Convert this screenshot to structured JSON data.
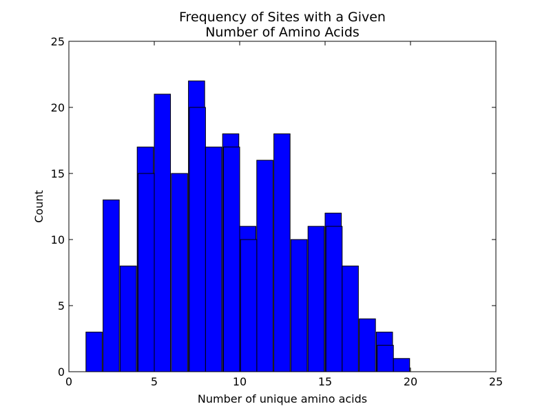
{
  "chart_data": {
    "type": "bar",
    "title_lines": [
      "Frequency of Sites with a Given",
      "Number of Amino Acids"
    ],
    "xlabel": "Number of unique amino acids",
    "ylabel": "Count",
    "xlim": [
      0,
      25
    ],
    "ylim": [
      0,
      25
    ],
    "xticks": [
      0,
      5,
      10,
      15,
      20,
      25
    ],
    "yticks": [
      0,
      5,
      10,
      15,
      20,
      25
    ],
    "grid": false,
    "bar_color": "#0000ff",
    "series": [
      {
        "values": [
          {
            "x": 1,
            "y": 3
          },
          {
            "x": 2,
            "y": 13
          },
          {
            "x": 3,
            "y": 8
          },
          {
            "x": 4,
            "y": 17
          },
          {
            "x": 4.05,
            "y": 15
          },
          {
            "x": 5,
            "y": 21
          },
          {
            "x": 6,
            "y": 15
          },
          {
            "x": 7,
            "y": 22
          },
          {
            "x": 7.05,
            "y": 20
          },
          {
            "x": 8,
            "y": 17
          },
          {
            "x": 9,
            "y": 18
          },
          {
            "x": 9.05,
            "y": 17
          },
          {
            "x": 10,
            "y": 11
          },
          {
            "x": 10.05,
            "y": 10
          },
          {
            "x": 11,
            "y": 16
          },
          {
            "x": 12,
            "y": 18
          },
          {
            "x": 13,
            "y": 10
          },
          {
            "x": 14,
            "y": 11
          },
          {
            "x": 15,
            "y": 12
          },
          {
            "x": 15.05,
            "y": 11
          },
          {
            "x": 16,
            "y": 8
          },
          {
            "x": 17,
            "y": 4
          },
          {
            "x": 18,
            "y": 3
          },
          {
            "x": 18.05,
            "y": 2
          },
          {
            "x": 19,
            "y": 1
          }
        ]
      }
    ]
  }
}
